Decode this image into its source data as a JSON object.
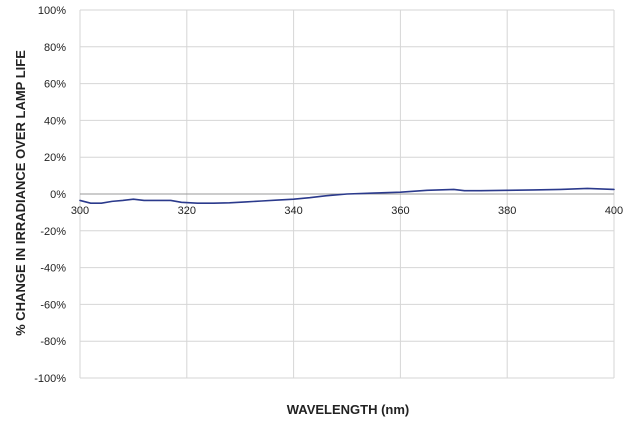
{
  "chart_data": {
    "type": "line",
    "title": "",
    "xlabel": "WAVELENGTH (nm)",
    "ylabel": "% CHANGE IN IRRADIANCE OVER LAMP LIFE",
    "xlim": [
      300,
      400
    ],
    "ylim": [
      -100,
      100
    ],
    "x_ticks": [
      "300",
      "320",
      "340",
      "360",
      "380",
      "400"
    ],
    "x_tick_values": [
      300,
      320,
      340,
      360,
      380,
      400
    ],
    "y_ticks": [
      "100%",
      "80%",
      "60%",
      "40%",
      "20%",
      "0%",
      "-20%",
      "-40%",
      "-60%",
      "-80%",
      "-100%"
    ],
    "y_tick_values": [
      100,
      80,
      60,
      40,
      20,
      0,
      -20,
      -40,
      -60,
      -80,
      -100
    ],
    "grid": true,
    "legend": "none",
    "series": [
      {
        "color": "#2b3a8c",
        "x": [
          300,
          302,
          304,
          306,
          308,
          310,
          312,
          314,
          317,
          319,
          322,
          325,
          328,
          331,
          334,
          337,
          340,
          343,
          346,
          350,
          355,
          360,
          365,
          370,
          372,
          375,
          380,
          385,
          390,
          395,
          400
        ],
        "y": [
          -3.5,
          -5.0,
          -5.0,
          -4.0,
          -3.5,
          -2.8,
          -3.5,
          -3.5,
          -3.5,
          -4.5,
          -5.0,
          -5.0,
          -4.8,
          -4.3,
          -3.8,
          -3.3,
          -2.8,
          -2.0,
          -1.0,
          0.0,
          0.5,
          1.0,
          2.0,
          2.5,
          1.8,
          1.8,
          2.0,
          2.2,
          2.5,
          3.0,
          2.5
        ]
      }
    ]
  }
}
